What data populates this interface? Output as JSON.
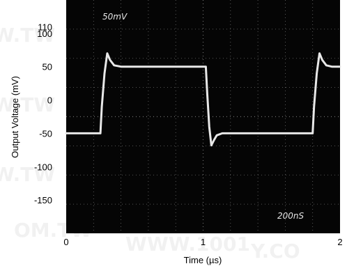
{
  "chart_data": {
    "type": "line",
    "title": "",
    "xlabel": "Time (µs)",
    "ylabel": "Output Voltage (mV)",
    "xlim": [
      0,
      2
    ],
    "ylim": [
      -200,
      150
    ],
    "x_ticks": [
      "0",
      "1",
      "2"
    ],
    "y_ticks": [
      "110",
      "100",
      "50",
      "0",
      "-50",
      "-100",
      "-150"
    ],
    "y_tick_values": [
      110,
      100,
      50,
      0,
      -50,
      -100,
      -150
    ],
    "grid": true,
    "legend": "none",
    "annotations": [
      {
        "text": "50mV",
        "position": "top-left"
      },
      {
        "text": "200nS",
        "position": "bottom-right"
      }
    ],
    "series": [
      {
        "x": [
          0.0,
          0.25,
          0.26,
          0.28,
          0.3,
          0.32,
          0.35,
          0.4,
          0.6,
          0.8,
          1.02,
          1.03,
          1.045,
          1.06,
          1.08,
          1.1,
          1.14,
          1.25,
          1.5,
          1.75,
          1.8,
          1.81,
          1.83,
          1.85,
          1.87,
          1.9,
          1.94,
          2.0
        ],
        "y": [
          -50,
          -50,
          -10,
          40,
          70,
          60,
          52,
          50,
          50,
          50,
          50,
          10,
          -40,
          -68,
          -60,
          -53,
          -50,
          -50,
          -50,
          -50,
          -50,
          -10,
          40,
          70,
          60,
          52,
          50,
          50
        ]
      }
    ],
    "colors": {
      "plot_background": "#050505",
      "trace": "#e8e8e8",
      "grid": "#6e6e6e"
    }
  }
}
